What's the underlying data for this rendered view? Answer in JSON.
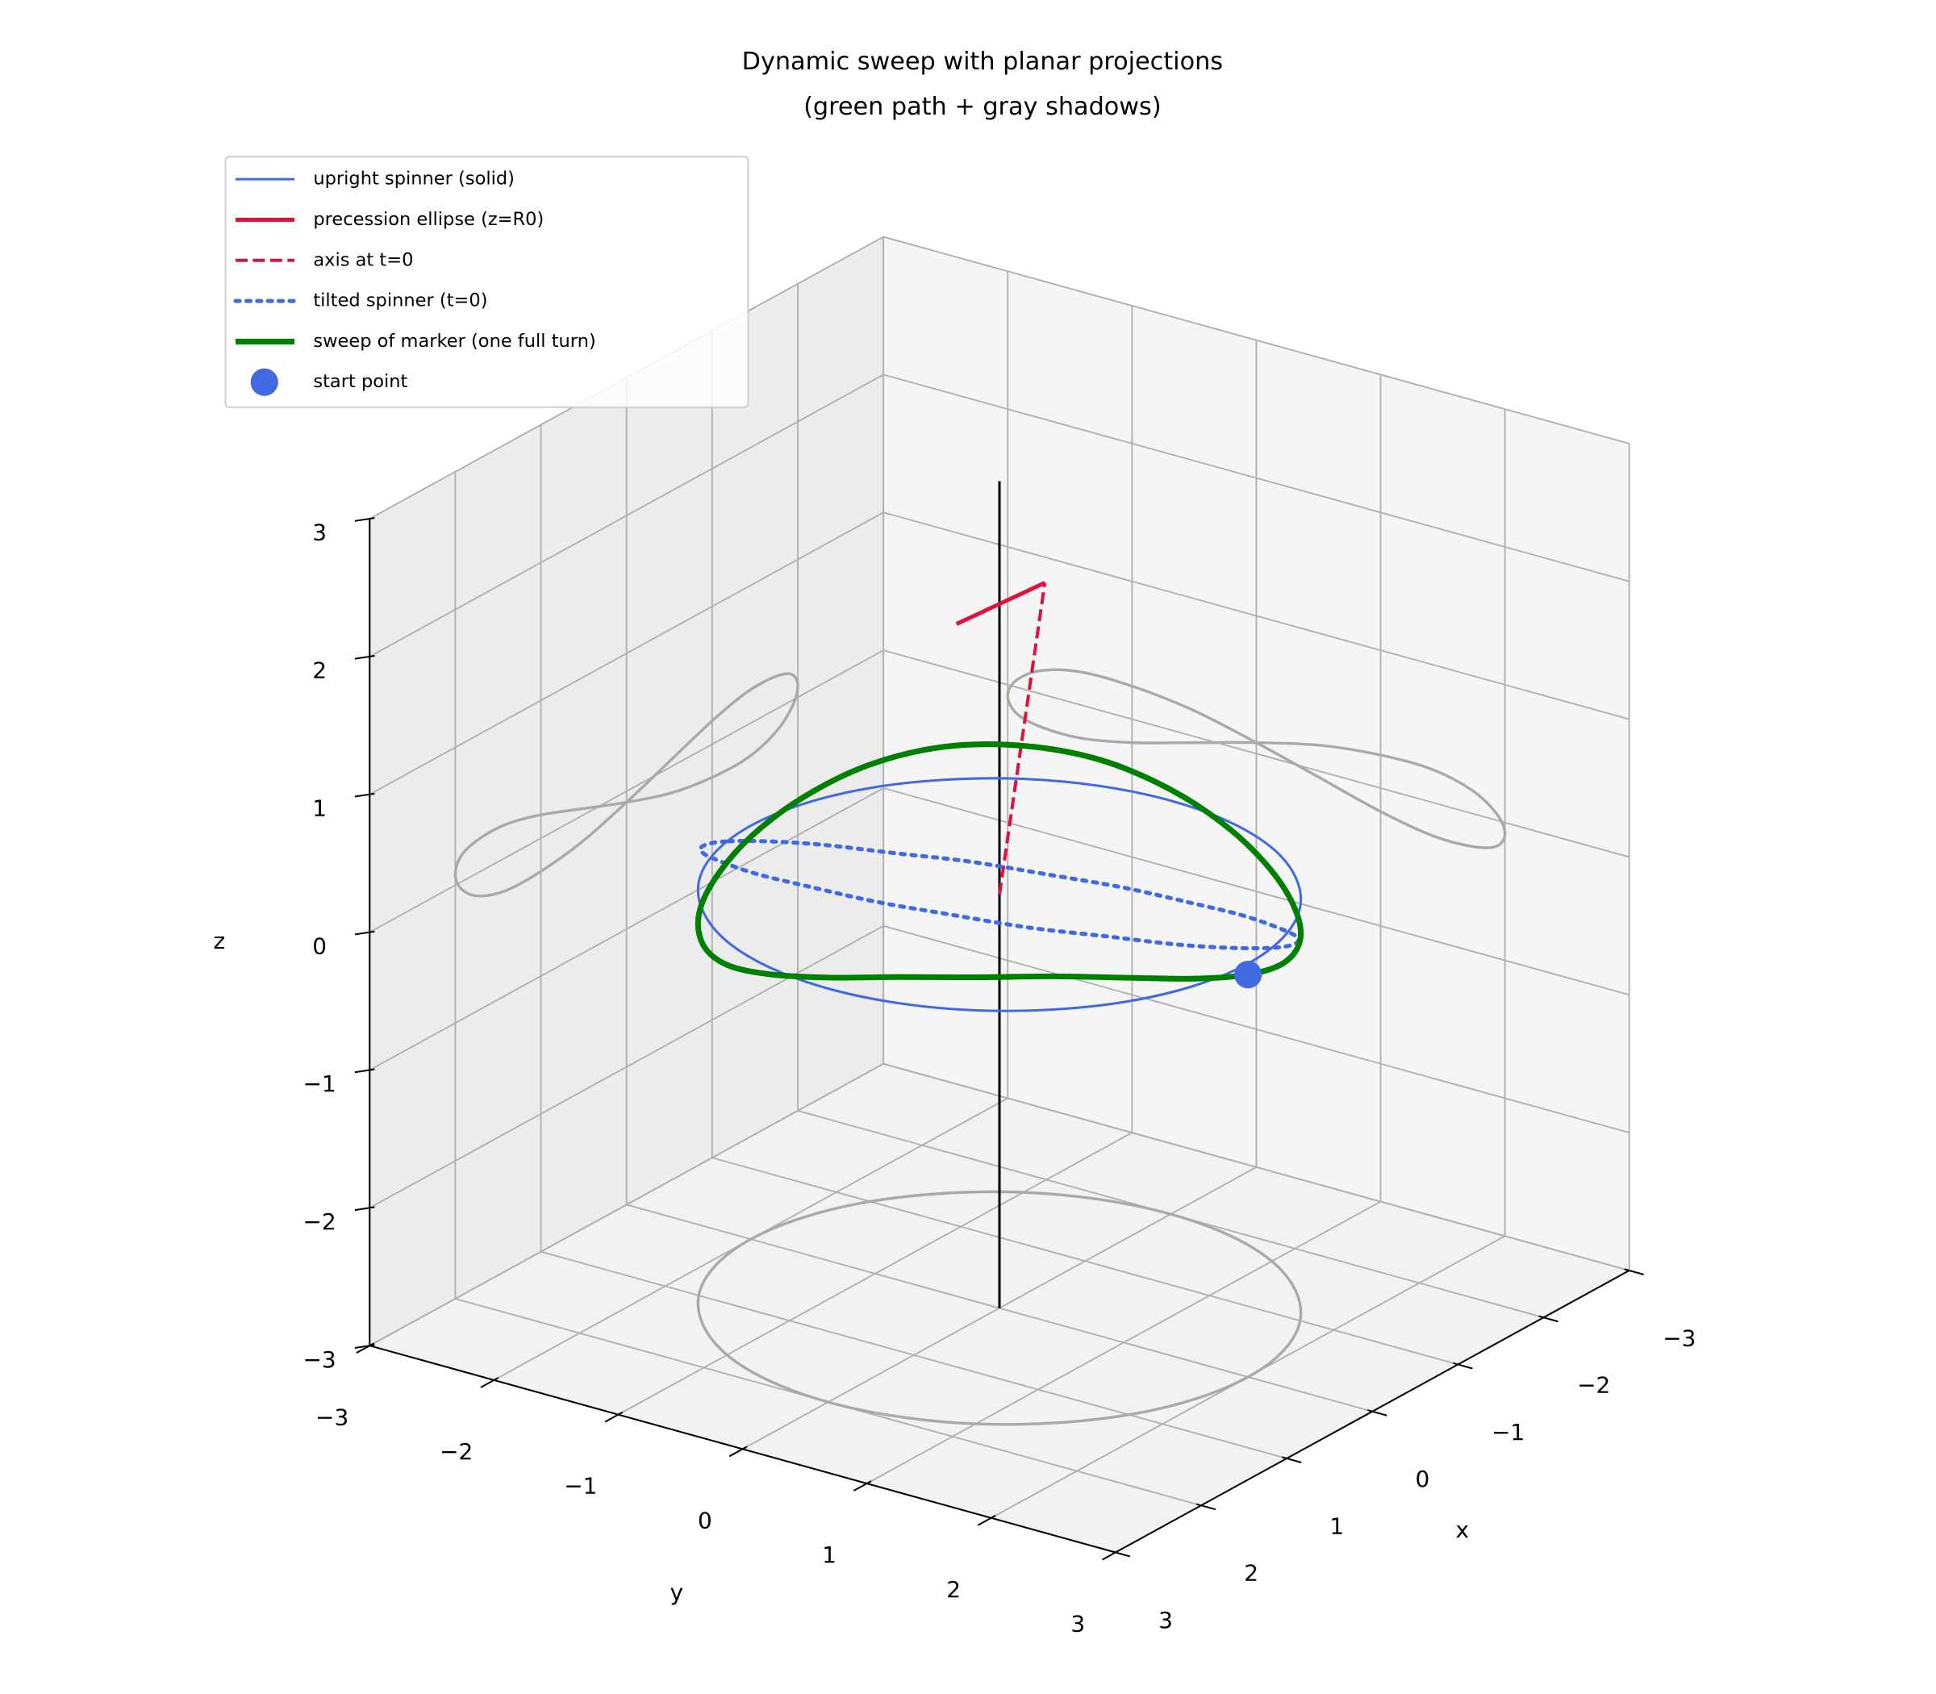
{
  "chart_data": {
    "type": "line3d",
    "title": [
      "Dynamic sweep with planar projections",
      "(green path + gray shadows)"
    ],
    "xlabel": "x",
    "ylabel": "y",
    "zlabel": "z",
    "xlim": [
      -3,
      3
    ],
    "ylim": [
      -3,
      3
    ],
    "zlim": [
      -3,
      3
    ],
    "xticks": [
      {
        "value": -3,
        "label": "−3"
      },
      {
        "value": -2,
        "label": "−2"
      },
      {
        "value": -1,
        "label": "−1"
      },
      0,
      1,
      2,
      3
    ],
    "yticks": [
      {
        "value": -3,
        "label": "−3"
      },
      {
        "value": -2,
        "label": "−2"
      },
      {
        "value": -1,
        "label": "−1"
      },
      0,
      1,
      2,
      3
    ],
    "zticks": [
      {
        "value": -3,
        "label": "−3"
      },
      {
        "value": -2,
        "label": "−2"
      },
      {
        "value": -1,
        "label": "−1"
      },
      0,
      1,
      2,
      3
    ],
    "grid": true,
    "legend": "upper left",
    "series": [
      {
        "color": "#000000",
        "linestyle": "solid",
        "linewidth": 1.5,
        "x": [
          0,
          0
        ],
        "y": [
          0,
          0
        ],
        "z": [
          -3,
          3
        ]
      },
      {
        "name": "upright spinner (solid)",
        "color": "#4169e1",
        "linestyle": "solid",
        "linewidth": 1.5,
        "closed": true,
        "x": [
          2,
          1.93,
          1.73,
          1.41,
          1,
          0.52,
          0,
          -0.52,
          -1,
          -1.41,
          -1.73,
          -1.93,
          -2,
          -1.93,
          -1.73,
          -1.41,
          -1,
          -0.52,
          0,
          0.52,
          1,
          1.41,
          1.73,
          1.93
        ],
        "y": [
          0,
          0.52,
          1,
          1.41,
          1.73,
          1.93,
          2,
          1.93,
          1.73,
          1.41,
          1,
          0.52,
          0,
          -0.52,
          -1,
          -1.41,
          -1.73,
          -1.93,
          -2,
          -1.93,
          -1.73,
          -1.41,
          -1,
          -0.52
        ],
        "z": [
          0,
          0,
          0,
          0,
          0,
          0,
          0,
          0,
          0,
          0,
          0,
          0,
          0,
          0,
          0,
          0,
          0,
          0,
          0,
          0,
          0,
          0,
          0,
          0
        ]
      },
      {
        "name": "precession ellipse (z=R0)",
        "color": "#dc143c",
        "linestyle": "solid",
        "linewidth": 2.5,
        "x": [
          -0.69,
          0.24
        ],
        "y": [
          -0.11,
          -0.18
        ],
        "z": [
          2,
          2
        ]
      },
      {
        "name": "axis at t=0",
        "color": "#dc143c",
        "linestyle": "dashed",
        "linewidth": 2,
        "x": [
          0,
          -0.69
        ],
        "y": [
          0,
          -0.11
        ],
        "z": [
          0,
          2
        ]
      },
      {
        "name": "tilted spinner (t=0)",
        "color": "#4169e1",
        "linestyle": "dotted",
        "linewidth": 2.5,
        "closed": true,
        "x": [
          0.32,
          0.79,
          1.21,
          1.54,
          1.77,
          1.88,
          1.87,
          1.72,
          1.46,
          1.09,
          0.66,
          0.18,
          -0.32,
          -0.79,
          -1.21,
          -1.54,
          -1.77,
          -1.88,
          -1.87,
          -1.72,
          -1.46,
          -1.09,
          -0.66,
          -0.18
        ],
        "y": [
          -1.98,
          -1.83,
          -1.56,
          -1.18,
          -0.73,
          -0.23,
          0.3,
          0.8,
          1.25,
          1.6,
          1.86,
          1.98,
          1.98,
          1.83,
          1.56,
          1.18,
          0.73,
          0.23,
          -0.3,
          -0.8,
          -1.25,
          -1.6,
          -1.86,
          -1.98
        ],
        "z": [
          0,
          0.17,
          0.33,
          0.47,
          0.57,
          0.64,
          0.66,
          0.64,
          0.57,
          0.47,
          0.33,
          0.17,
          0,
          -0.17,
          -0.33,
          -0.47,
          -0.57,
          -0.64,
          -0.66,
          -0.64,
          -0.57,
          -0.47,
          -0.33,
          -0.17
        ]
      },
      {
        "name": "sweep of marker (one full turn)",
        "color": "#008000",
        "linestyle": "solid",
        "linewidth": 3.5,
        "closed": true,
        "shadow_color": "#a9a9a9",
        "x": [
          0,
          -0.52,
          -1,
          -1.41,
          -1.73,
          -1.93,
          -2,
          -1.93,
          -1.73,
          -1.41,
          -1,
          -0.52,
          0,
          0.52,
          1,
          1.41,
          1.73,
          1.93,
          2,
          1.93,
          1.73,
          1.41,
          1,
          0.52
        ],
        "y": [
          2,
          1.93,
          1.73,
          1.41,
          1,
          0.52,
          0,
          -0.52,
          -1,
          -1.41,
          -1.73,
          -1.93,
          -2,
          -1.93,
          -1.73,
          -1.41,
          -1,
          -0.52,
          0,
          0.52,
          1,
          1.41,
          1.73,
          1.93
        ],
        "z": [
          -0.08,
          -0.19,
          -0.24,
          -0.24,
          -0.17,
          -0.05,
          0.08,
          0.19,
          0.24,
          0.24,
          0.17,
          0.05,
          -0.08,
          -0.19,
          -0.24,
          -0.24,
          -0.17,
          -0.05,
          0.08,
          0.19,
          0.24,
          0.24,
          0.17,
          0.05
        ]
      },
      {
        "name": "start point",
        "type": "scatter",
        "color": "#4169e1",
        "markersize": 10,
        "x": [
          0
        ],
        "y": [
          2
        ],
        "z": [
          -0.08
        ]
      }
    ]
  }
}
